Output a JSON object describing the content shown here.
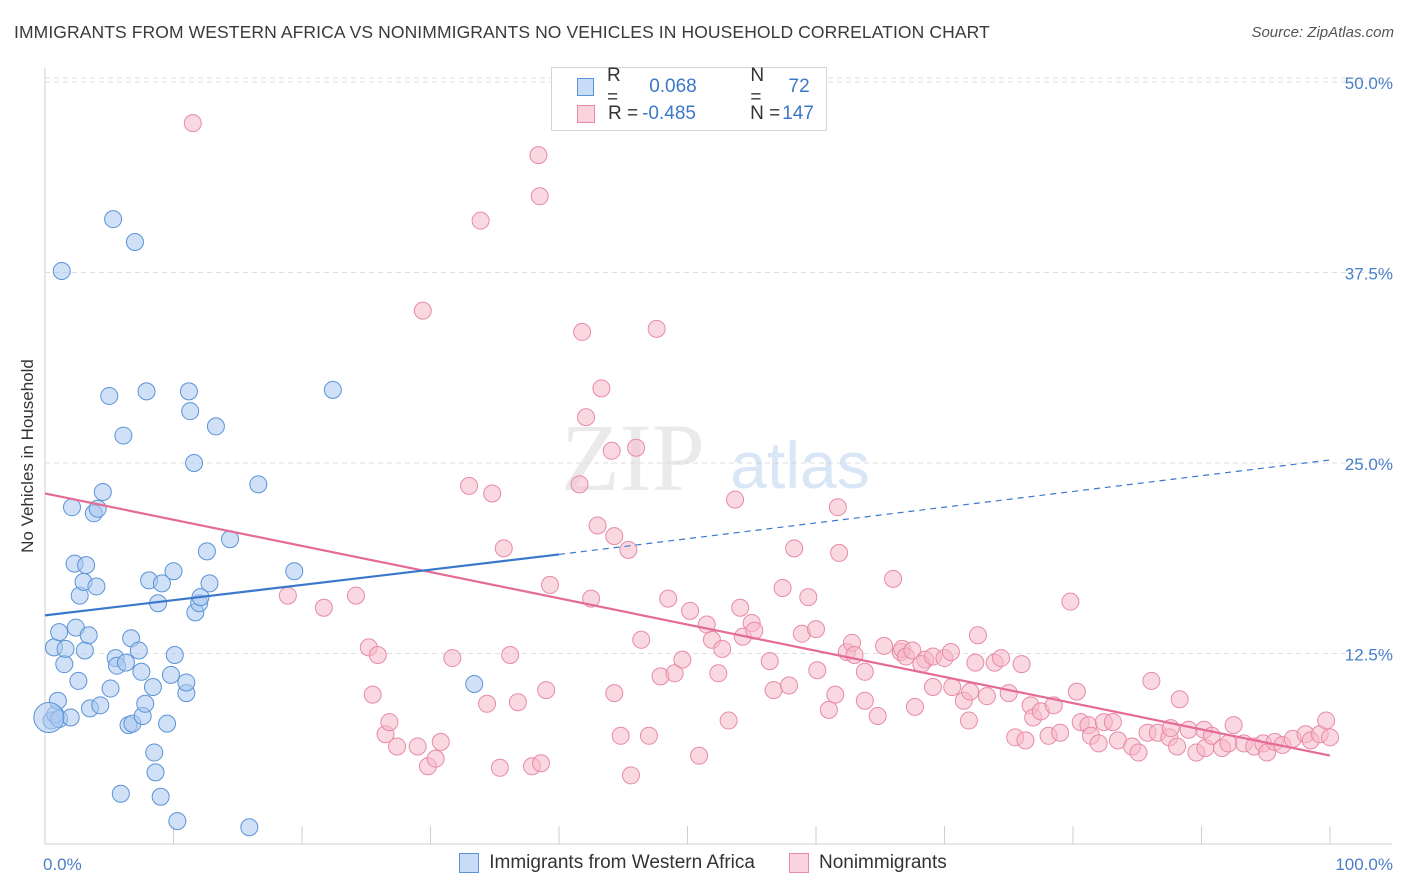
{
  "header": {
    "title": "IMMIGRANTS FROM WESTERN AFRICA VS NONIMMIGRANTS NO VEHICLES IN HOUSEHOLD CORRELATION CHART",
    "source": "Source: ZipAtlas.com"
  },
  "watermark": {
    "zip": "ZIP",
    "atlas": "atlas"
  },
  "legend_top": {
    "rows": [
      {
        "r_label": "R = ",
        "r_value": "0.068",
        "n_label": "N = ",
        "n_value": "72"
      },
      {
        "r_label": "R = ",
        "r_value": "-0.485",
        "n_label": "N = ",
        "n_value": "147"
      }
    ]
  },
  "legend_bottom": {
    "items": [
      {
        "label": "Immigrants from Western Africa"
      },
      {
        "label": "Nonimmigrants"
      }
    ]
  },
  "colors": {
    "blue_fill": "#a9c8f0",
    "blue_stroke": "#5b93d6",
    "blue_line": "#3a78cc",
    "pink_fill": "#f6b8cb",
    "pink_stroke": "#e88aa6",
    "pink_line": "#e46b95",
    "grid": "#dedede",
    "tick_label": "#4a7fc8"
  },
  "chart_data": {
    "type": "scatter",
    "title": "IMMIGRANTS FROM WESTERN AFRICA VS NONIMMIGRANTS NO VEHICLES IN HOUSEHOLD CORRELATION CHART",
    "xlabel": "",
    "ylabel": "No Vehicles in Household",
    "xlim": [
      0,
      100
    ],
    "ylim": [
      0,
      50
    ],
    "x_tick_labels": [
      "0.0%",
      "100.0%"
    ],
    "y_ticks": [
      12.5,
      25.0,
      37.5,
      50.0
    ],
    "y_tick_labels": [
      "12.5%",
      "25.0%",
      "37.5%",
      "50.0%"
    ],
    "grid": true,
    "legend_position": "top-center",
    "series": [
      {
        "name": "Immigrants from Western Africa",
        "r": 0.068,
        "n": 72,
        "trend": {
          "x0": 0,
          "y0": 15.0,
          "x1": 40,
          "y1": 19.0,
          "dashed_to_x": 100,
          "dashed_to_y": 25.2
        },
        "points": [
          [
            0.5,
            8.1
          ],
          [
            0.8,
            8.5
          ],
          [
            1.0,
            9.4
          ],
          [
            1.1,
            8.2
          ],
          [
            0.7,
            12.9
          ],
          [
            1.1,
            13.9
          ],
          [
            1.3,
            37.6
          ],
          [
            1.5,
            11.8
          ],
          [
            1.6,
            12.8
          ],
          [
            2.0,
            8.3
          ],
          [
            2.1,
            22.1
          ],
          [
            2.3,
            18.4
          ],
          [
            2.4,
            14.2
          ],
          [
            2.6,
            10.7
          ],
          [
            2.7,
            16.3
          ],
          [
            3.0,
            17.2
          ],
          [
            3.1,
            12.7
          ],
          [
            3.2,
            18.3
          ],
          [
            3.4,
            13.7
          ],
          [
            3.5,
            8.9
          ],
          [
            3.8,
            21.7
          ],
          [
            4.0,
            16.9
          ],
          [
            4.1,
            22.0
          ],
          [
            4.3,
            9.1
          ],
          [
            4.5,
            23.1
          ],
          [
            5.0,
            29.4
          ],
          [
            5.1,
            10.2
          ],
          [
            5.3,
            41.0
          ],
          [
            5.5,
            12.2
          ],
          [
            5.6,
            11.7
          ],
          [
            5.9,
            3.3
          ],
          [
            6.1,
            26.8
          ],
          [
            6.3,
            11.9
          ],
          [
            6.5,
            7.8
          ],
          [
            6.7,
            13.5
          ],
          [
            6.8,
            7.9
          ],
          [
            7.0,
            39.5
          ],
          [
            7.3,
            12.7
          ],
          [
            7.5,
            11.3
          ],
          [
            7.6,
            8.4
          ],
          [
            7.8,
            9.2
          ],
          [
            7.9,
            29.7
          ],
          [
            8.1,
            17.3
          ],
          [
            8.4,
            10.3
          ],
          [
            8.5,
            6.0
          ],
          [
            8.6,
            4.7
          ],
          [
            8.8,
            15.8
          ],
          [
            9.0,
            3.1
          ],
          [
            9.1,
            17.1
          ],
          [
            9.5,
            7.9
          ],
          [
            9.8,
            11.1
          ],
          [
            10.0,
            17.9
          ],
          [
            10.1,
            12.4
          ],
          [
            10.3,
            1.5
          ],
          [
            11.0,
            9.9
          ],
          [
            11.0,
            10.6
          ],
          [
            11.2,
            29.7
          ],
          [
            11.3,
            28.4
          ],
          [
            11.6,
            25.0
          ],
          [
            11.7,
            15.2
          ],
          [
            12.0,
            15.8
          ],
          [
            12.1,
            16.2
          ],
          [
            12.6,
            19.2
          ],
          [
            12.8,
            17.1
          ],
          [
            13.3,
            27.4
          ],
          [
            14.4,
            20.0
          ],
          [
            15.9,
            1.1
          ],
          [
            16.6,
            23.6
          ],
          [
            19.4,
            17.9
          ],
          [
            22.4,
            29.8
          ],
          [
            33.4,
            10.5
          ],
          [
            0.3,
            8.3
          ]
        ]
      },
      {
        "name": "Nonimmigrants",
        "r": -0.485,
        "n": 147,
        "trend": {
          "x0": 0,
          "y0": 23.0,
          "x1": 100,
          "y1": 5.8
        },
        "points": [
          [
            11.5,
            47.3
          ],
          [
            18.9,
            16.3
          ],
          [
            21.7,
            15.5
          ],
          [
            24.2,
            16.3
          ],
          [
            25.2,
            12.9
          ],
          [
            25.5,
            9.8
          ],
          [
            25.9,
            12.4
          ],
          [
            26.5,
            7.2
          ],
          [
            26.8,
            8.0
          ],
          [
            27.4,
            6.4
          ],
          [
            29.0,
            6.4
          ],
          [
            29.4,
            35.0
          ],
          [
            29.8,
            5.1
          ],
          [
            30.4,
            5.6
          ],
          [
            30.8,
            6.7
          ],
          [
            31.7,
            12.2
          ],
          [
            33.0,
            23.5
          ],
          [
            33.9,
            40.9
          ],
          [
            34.4,
            9.2
          ],
          [
            34.8,
            23.0
          ],
          [
            35.4,
            5.0
          ],
          [
            35.7,
            19.4
          ],
          [
            36.2,
            12.4
          ],
          [
            36.8,
            9.3
          ],
          [
            37.9,
            5.1
          ],
          [
            38.6,
            5.3
          ],
          [
            38.5,
            42.5
          ],
          [
            38.4,
            45.2
          ],
          [
            39.0,
            10.1
          ],
          [
            39.3,
            17.0
          ],
          [
            41.8,
            33.6
          ],
          [
            41.6,
            23.6
          ],
          [
            42.1,
            28.0
          ],
          [
            42.5,
            16.1
          ],
          [
            43.3,
            29.9
          ],
          [
            43.0,
            20.9
          ],
          [
            44.1,
            25.8
          ],
          [
            44.3,
            20.2
          ],
          [
            44.8,
            7.1
          ],
          [
            44.3,
            9.9
          ],
          [
            45.4,
            19.3
          ],
          [
            46.0,
            26.0
          ],
          [
            45.6,
            4.5
          ],
          [
            46.4,
            13.4
          ],
          [
            47.0,
            7.1
          ],
          [
            47.6,
            33.8
          ],
          [
            47.9,
            11.0
          ],
          [
            48.5,
            16.1
          ],
          [
            49.0,
            11.2
          ],
          [
            49.6,
            12.1
          ],
          [
            50.2,
            15.3
          ],
          [
            50.9,
            5.8
          ],
          [
            51.5,
            14.4
          ],
          [
            51.9,
            13.4
          ],
          [
            52.4,
            11.2
          ],
          [
            52.7,
            12.8
          ],
          [
            53.2,
            8.1
          ],
          [
            53.7,
            22.6
          ],
          [
            54.3,
            13.6
          ],
          [
            54.1,
            15.5
          ],
          [
            55.0,
            14.5
          ],
          [
            55.2,
            14.0
          ],
          [
            56.4,
            12.0
          ],
          [
            56.7,
            10.1
          ],
          [
            57.4,
            16.8
          ],
          [
            57.9,
            10.4
          ],
          [
            58.3,
            19.4
          ],
          [
            58.9,
            13.8
          ],
          [
            59.4,
            16.2
          ],
          [
            60.1,
            11.4
          ],
          [
            60.0,
            14.1
          ],
          [
            61.0,
            8.8
          ],
          [
            61.5,
            9.8
          ],
          [
            61.7,
            22.1
          ],
          [
            61.8,
            19.1
          ],
          [
            62.4,
            12.6
          ],
          [
            62.8,
            13.2
          ],
          [
            63.0,
            12.4
          ],
          [
            63.8,
            9.4
          ],
          [
            63.8,
            11.3
          ],
          [
            64.8,
            8.4
          ],
          [
            65.3,
            13.0
          ],
          [
            66.0,
            17.4
          ],
          [
            66.6,
            12.6
          ],
          [
            66.7,
            12.8
          ],
          [
            67.0,
            12.3
          ],
          [
            67.5,
            12.7
          ],
          [
            67.7,
            9.0
          ],
          [
            68.5,
            12.1
          ],
          [
            68.2,
            11.8
          ],
          [
            69.1,
            12.3
          ],
          [
            69.1,
            10.3
          ],
          [
            70.0,
            12.2
          ],
          [
            70.6,
            10.3
          ],
          [
            70.5,
            12.6
          ],
          [
            71.5,
            9.4
          ],
          [
            71.9,
            8.1
          ],
          [
            72.0,
            10.0
          ],
          [
            72.4,
            11.9
          ],
          [
            72.6,
            13.7
          ],
          [
            73.3,
            9.7
          ],
          [
            73.9,
            11.9
          ],
          [
            74.4,
            12.2
          ],
          [
            75.0,
            9.9
          ],
          [
            75.5,
            7.0
          ],
          [
            76.0,
            11.8
          ],
          [
            76.7,
            9.1
          ],
          [
            76.9,
            8.3
          ],
          [
            77.5,
            8.7
          ],
          [
            78.1,
            7.1
          ],
          [
            78.5,
            9.1
          ],
          [
            79.0,
            7.3
          ],
          [
            79.8,
            15.9
          ],
          [
            80.3,
            10.0
          ],
          [
            80.6,
            8.0
          ],
          [
            81.2,
            7.8
          ],
          [
            81.4,
            7.1
          ],
          [
            82.0,
            6.6
          ],
          [
            82.4,
            8.0
          ],
          [
            83.1,
            8.0
          ],
          [
            83.5,
            6.8
          ],
          [
            84.6,
            6.4
          ],
          [
            85.1,
            6.0
          ],
          [
            85.8,
            7.3
          ],
          [
            86.1,
            10.7
          ],
          [
            86.6,
            7.3
          ],
          [
            87.5,
            7.0
          ],
          [
            87.6,
            7.6
          ],
          [
            88.3,
            9.5
          ],
          [
            88.1,
            6.4
          ],
          [
            89.0,
            7.5
          ],
          [
            89.6,
            6.0
          ],
          [
            90.2,
            7.5
          ],
          [
            90.3,
            6.3
          ],
          [
            90.8,
            7.1
          ],
          [
            91.6,
            6.3
          ],
          [
            92.1,
            6.6
          ],
          [
            92.5,
            7.8
          ],
          [
            93.3,
            6.6
          ],
          [
            94.1,
            6.4
          ],
          [
            94.8,
            6.6
          ],
          [
            95.1,
            6.0
          ],
          [
            95.7,
            6.7
          ],
          [
            96.3,
            6.5
          ],
          [
            97.1,
            6.9
          ],
          [
            98.1,
            7.2
          ],
          [
            98.5,
            6.8
          ],
          [
            99.2,
            7.2
          ],
          [
            99.7,
            8.1
          ],
          [
            100.0,
            7.0
          ],
          [
            76.3,
            6.8
          ]
        ]
      }
    ]
  }
}
